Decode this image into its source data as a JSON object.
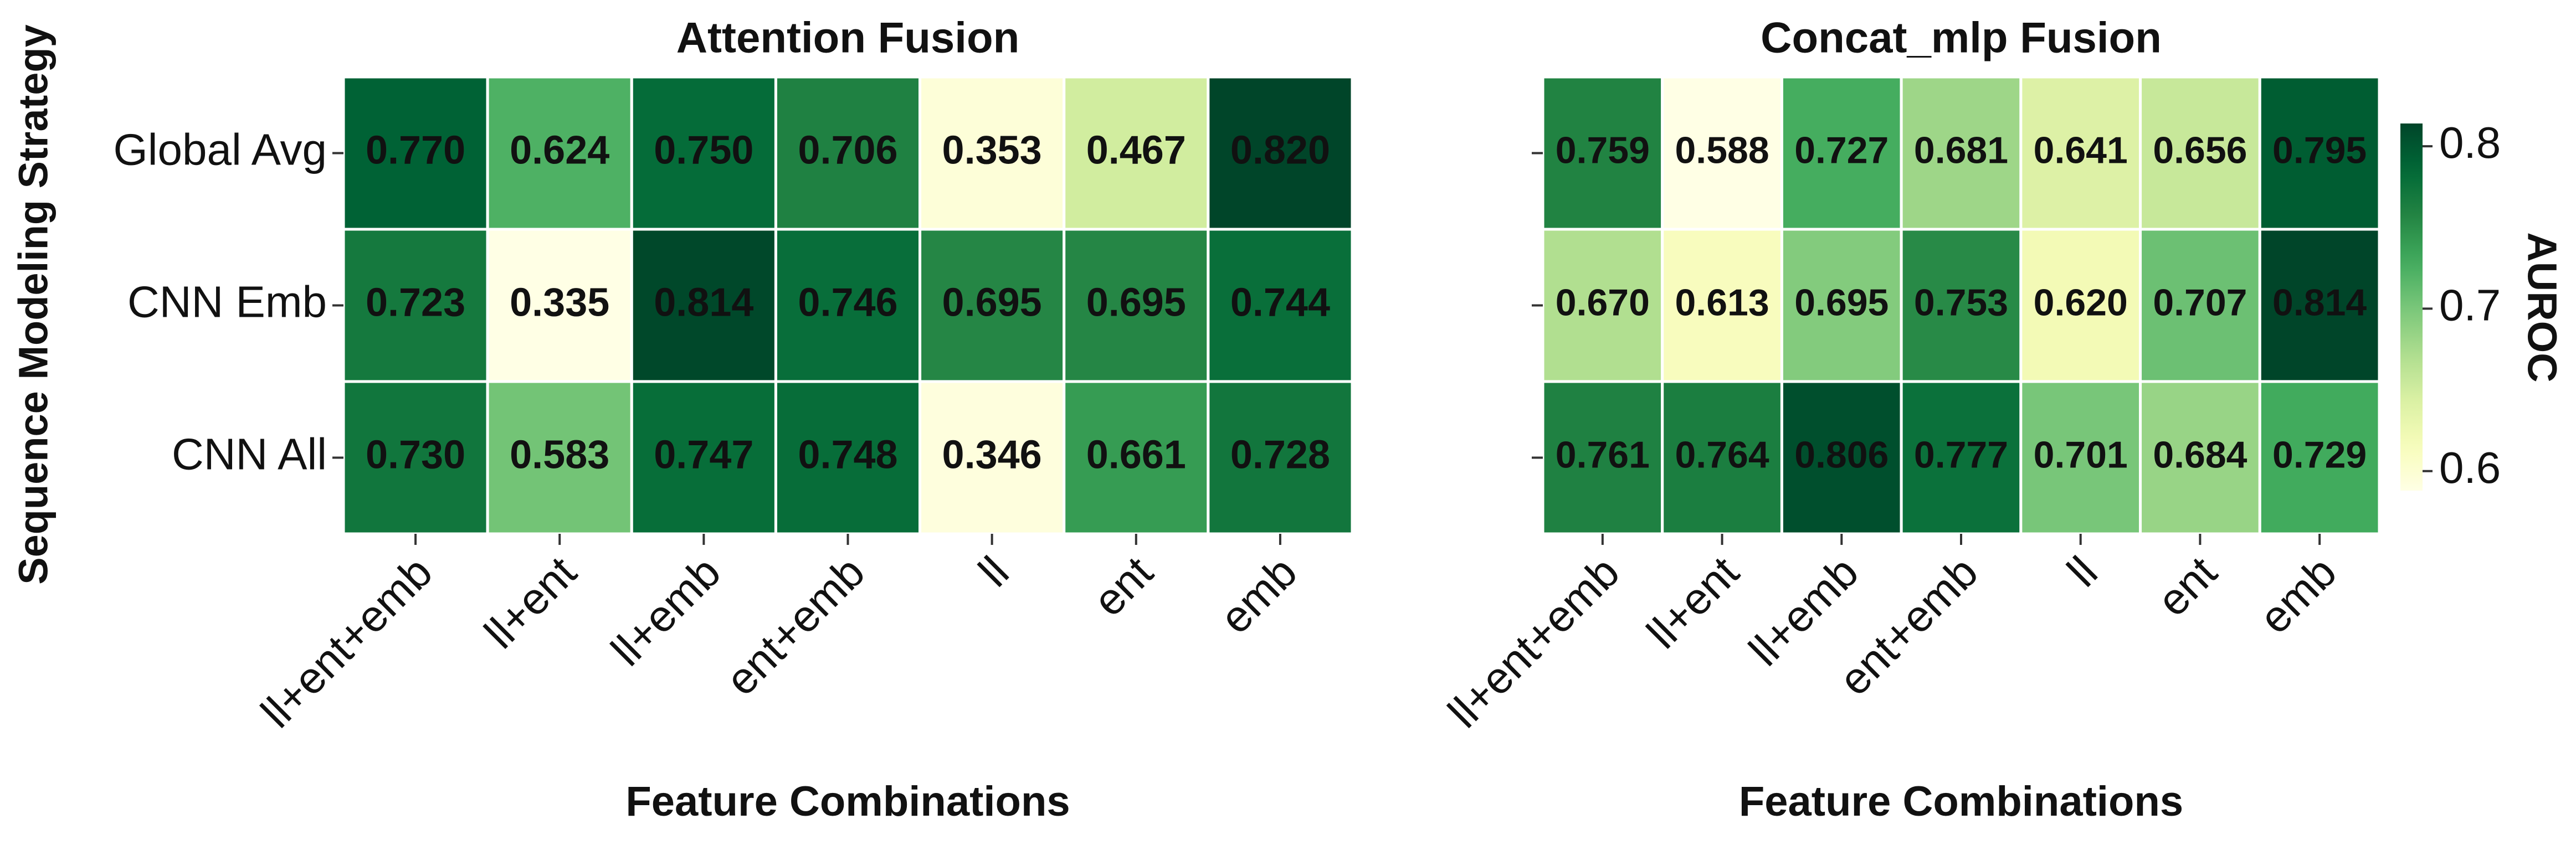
{
  "chart_data": [
    {
      "type": "heatmap",
      "title": "Attention Fusion",
      "xlabel": "Feature Combinations",
      "ylabel": "Sequence Modeling Strategy",
      "x_categories": [
        "ll+ent+emb",
        "ll+ent",
        "ll+emb",
        "ent+emb",
        "ll",
        "ent",
        "emb"
      ],
      "y_categories": [
        "Global Avg",
        "CNN Emb",
        "CNN All"
      ],
      "values": [
        [
          0.77,
          0.624,
          0.75,
          0.706,
          0.353,
          0.467,
          0.82
        ],
        [
          0.723,
          0.335,
          0.814,
          0.746,
          0.695,
          0.695,
          0.744
        ],
        [
          0.73,
          0.583,
          0.747,
          0.748,
          0.346,
          0.661,
          0.728
        ]
      ],
      "value_labels": [
        [
          "0.770",
          "0.624",
          "0.750",
          "0.706",
          "0.353",
          "0.467",
          "0.820"
        ],
        [
          "0.723",
          "0.335",
          "0.814",
          "0.746",
          "0.695",
          "0.695",
          "0.744"
        ],
        [
          "0.730",
          "0.583",
          "0.747",
          "0.748",
          "0.346",
          "0.661",
          "0.728"
        ]
      ],
      "colormap": "YlGn",
      "clim": [
        0.335,
        0.82
      ]
    },
    {
      "type": "heatmap",
      "title": "Concat_mlp Fusion",
      "xlabel": "Feature Combinations",
      "x_categories": [
        "ll+ent+emb",
        "ll+ent",
        "ll+emb",
        "ent+emb",
        "ll",
        "ent",
        "emb"
      ],
      "values": [
        [
          0.759,
          0.588,
          0.727,
          0.681,
          0.641,
          0.656,
          0.795
        ],
        [
          0.67,
          0.613,
          0.695,
          0.753,
          0.62,
          0.707,
          0.814
        ],
        [
          0.761,
          0.764,
          0.806,
          0.777,
          0.701,
          0.684,
          0.729
        ]
      ],
      "value_labels": [
        [
          "0.759",
          "0.588",
          "0.727",
          "0.681",
          "0.641",
          "0.656",
          "0.795"
        ],
        [
          "0.670",
          "0.613",
          "0.695",
          "0.753",
          "0.620",
          "0.707",
          "0.814"
        ],
        [
          "0.761",
          "0.764",
          "0.806",
          "0.777",
          "0.701",
          "0.684",
          "0.729"
        ]
      ],
      "colormap": "YlGn",
      "clim": [
        0.588,
        0.814
      ],
      "colorbar": {
        "label": "AUROC",
        "ticks": [
          0.6,
          0.7,
          0.8
        ]
      }
    }
  ]
}
